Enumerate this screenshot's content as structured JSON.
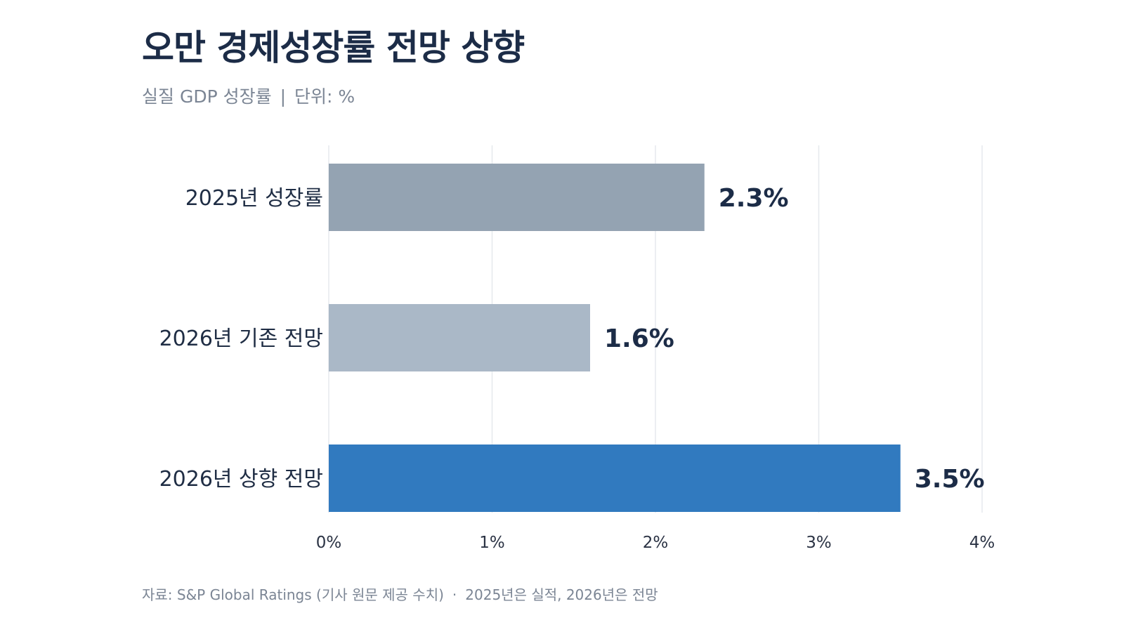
{
  "header": {
    "title": "오만 경제성장률 전망 상향",
    "subtitle_metric": "실질 GDP 성장률",
    "subtitle_separator": "|",
    "subtitle_unit": "단위: %"
  },
  "footer": {
    "source": "자료: S&P Global Ratings (기사 원문 제공 수치)",
    "separator": "·",
    "note": "2025년은 실적, 2026년은 전망"
  },
  "colors": {
    "bar_2025": "#94a3b2",
    "bar_2026_base": "#aab8c7",
    "bar_2026_up": "#317abf",
    "value_label": "#1c2c47",
    "category_label": "#1f2d44",
    "grid": "#e6e9ed",
    "tick_label": "#2b3344"
  },
  "chart_data": {
    "type": "bar",
    "orientation": "horizontal",
    "categories": [
      "2025년 성장률",
      "2026년 기존 전망",
      "2026년 상향 전망"
    ],
    "values": [
      2.3,
      1.6,
      3.5
    ],
    "value_labels": [
      "2.3%",
      "1.6%",
      "3.5%"
    ],
    "bar_colors": [
      "#94a3b2",
      "#aab8c7",
      "#317abf"
    ],
    "xlim": [
      0,
      4
    ],
    "xticks": [
      0,
      1,
      2,
      3,
      4
    ],
    "xtick_labels": [
      "0%",
      "1%",
      "2%",
      "3%",
      "4%"
    ],
    "title": "오만 경제성장률 전망 상향",
    "xlabel": "",
    "ylabel": "",
    "grid": "vertical"
  }
}
